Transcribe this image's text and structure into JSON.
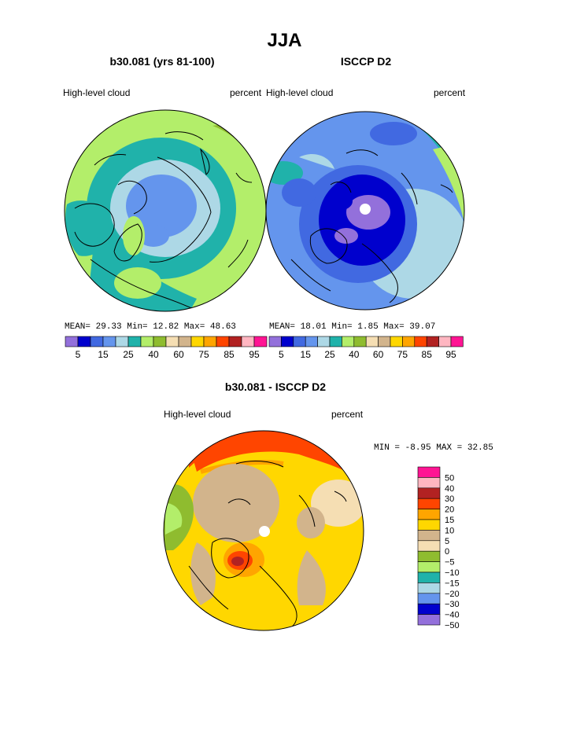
{
  "chart_data": {
    "type": "polar-filled-contour-maps",
    "title": "JJA",
    "panels": [
      {
        "id": "model",
        "title": "b30.081 (yrs 81-100)",
        "variable": "High-level cloud",
        "units": "percent",
        "stats": {
          "mean_label": "MEAN=",
          "mean": "29.33",
          "min_label": "Min=",
          "min": "12.82",
          "max_label": "Max=",
          "max": "48.63"
        }
      },
      {
        "id": "obs",
        "title": "ISCCP D2",
        "variable": "High-level cloud",
        "units": "percent",
        "stats": {
          "mean_label": "MEAN=",
          "mean": "18.01",
          "min_label": "Min=",
          "min": "1.85",
          "max_label": "Max=",
          "max": "39.07"
        }
      },
      {
        "id": "diff",
        "title": "b30.081 - ISCCP D2",
        "variable": "High-level cloud",
        "units": "percent",
        "stats": {
          "min_label": "MIN =",
          "min": "-8.95",
          "max_label": "MAX =",
          "max": "32.85"
        }
      }
    ],
    "colorbar_top": {
      "orientation": "horizontal",
      "colors": [
        "#9370db",
        "#0000cd",
        "#4169e1",
        "#6495ed",
        "#add8e6",
        "#20b2aa",
        "#b3ee6a",
        "#8fbc2f",
        "#f5deb3",
        "#d2b48c",
        "#ffd700",
        "#ffa500",
        "#ff4500",
        "#b22222",
        "#ffb6c1",
        "#ff1493"
      ],
      "tick_labels": [
        "5",
        "15",
        "25",
        "40",
        "60",
        "75",
        "85",
        "95"
      ]
    },
    "colorbar_diff": {
      "orientation": "vertical",
      "colors": [
        "#ff1493",
        "#ffb6c1",
        "#b22222",
        "#ff4500",
        "#ffa500",
        "#ffd700",
        "#d2b48c",
        "#f5deb3",
        "#8fbc2f",
        "#b3ee6a",
        "#20b2aa",
        "#add8e6",
        "#6495ed",
        "#0000cd",
        "#9370db"
      ],
      "tick_labels": [
        "50",
        "40",
        "30",
        "20",
        "15",
        "10",
        "5",
        "0",
        "−5",
        "−10",
        "−15",
        "−20",
        "−30",
        "−40",
        "−50"
      ]
    }
  }
}
